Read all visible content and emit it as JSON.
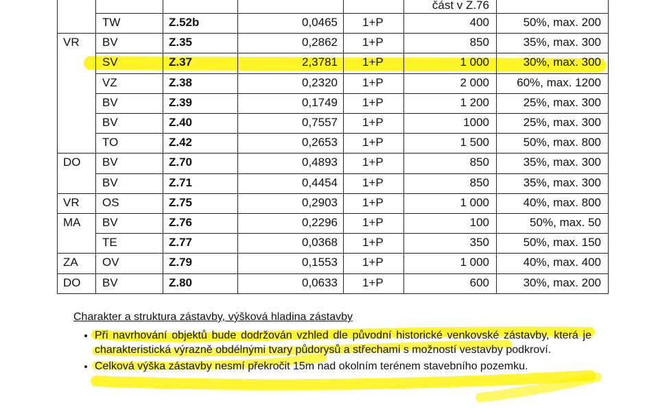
{
  "table": {
    "top_note": "část v Z.76",
    "rows": [
      {
        "use": "TW",
        "code": "Z.52b",
        "area": "0,0465",
        "floors": "1+P",
        "min_plot": "400",
        "coverage": "50%, max. 200"
      },
      {
        "region": "VR",
        "use": "BV",
        "code": "Z.35",
        "area": "0,2862",
        "floors": "1+P",
        "min_plot": "850",
        "coverage": "35%, max. 300"
      },
      {
        "use": "SV",
        "code": "Z.37",
        "area": "2,3781",
        "floors": "1+P",
        "min_plot": "1 000",
        "coverage": "30%, max. 300"
      },
      {
        "use": "VZ",
        "code": "Z.38",
        "area": "0,2320",
        "floors": "1+P",
        "min_plot": "2 000",
        "coverage": "60%, max. 1200"
      },
      {
        "use": "BV",
        "code": "Z.39",
        "area": "0,1749",
        "floors": "1+P",
        "min_plot": "1 200",
        "coverage": "25%, max. 300"
      },
      {
        "use": "BV",
        "code": "Z.40",
        "area": "0,7557",
        "floors": "1+P",
        "min_plot": "1000",
        "coverage": "25%, max. 300"
      },
      {
        "use": "TO",
        "code": "Z.42",
        "area": "0,2653",
        "floors": "1+P",
        "min_plot": "1 500",
        "coverage": "50%, max. 800"
      },
      {
        "region": "DO",
        "use": "BV",
        "code": "Z.70",
        "area": "0,4893",
        "floors": "1+P",
        "min_plot": "850",
        "coverage": "35%, max. 300"
      },
      {
        "use": "BV",
        "code": "Z.71",
        "area": "0,4454",
        "floors": "1+P",
        "min_plot": "850",
        "coverage": "35%, max. 300"
      },
      {
        "region": "VR",
        "use": "OS",
        "code": "Z.75",
        "area": "0,2903",
        "floors": "1+P",
        "min_plot": "1 000",
        "coverage": "40%, max. 800"
      },
      {
        "region": "MA",
        "use": "BV",
        "code": "Z.76",
        "area": "0,2296",
        "floors": "1+P",
        "min_plot": "100",
        "coverage": "50%, max. 50"
      },
      {
        "use": "TE",
        "code": "Z.77",
        "area": "0,0368",
        "floors": "1+P",
        "min_plot": "350",
        "coverage": "50%, max. 150"
      },
      {
        "region": "ZA",
        "use": "OV",
        "code": "Z.79",
        "area": "0,1553",
        "floors": "1+P",
        "min_plot": "1 000",
        "coverage": "40%, max. 400"
      },
      {
        "region": "DO",
        "use": "BV",
        "code": "Z.80",
        "area": "0,0633",
        "floors": "1+P",
        "min_plot": "600",
        "coverage": "30%, max. 200"
      }
    ]
  },
  "section": {
    "heading": "Charakter a struktura zástavby, výšková hladina zástavby",
    "bullets": [
      "Při navrhování objektů bude dodržován vzhled dle původní historické venkovské zástavby, která je charakteristická výrazně obdélnými tvary půdorysů a střechami s možností vestavby podkroví.",
      "Celková výška zástavby nesmí překročit 15m nad okolním terénem stavebního pozemku."
    ]
  }
}
